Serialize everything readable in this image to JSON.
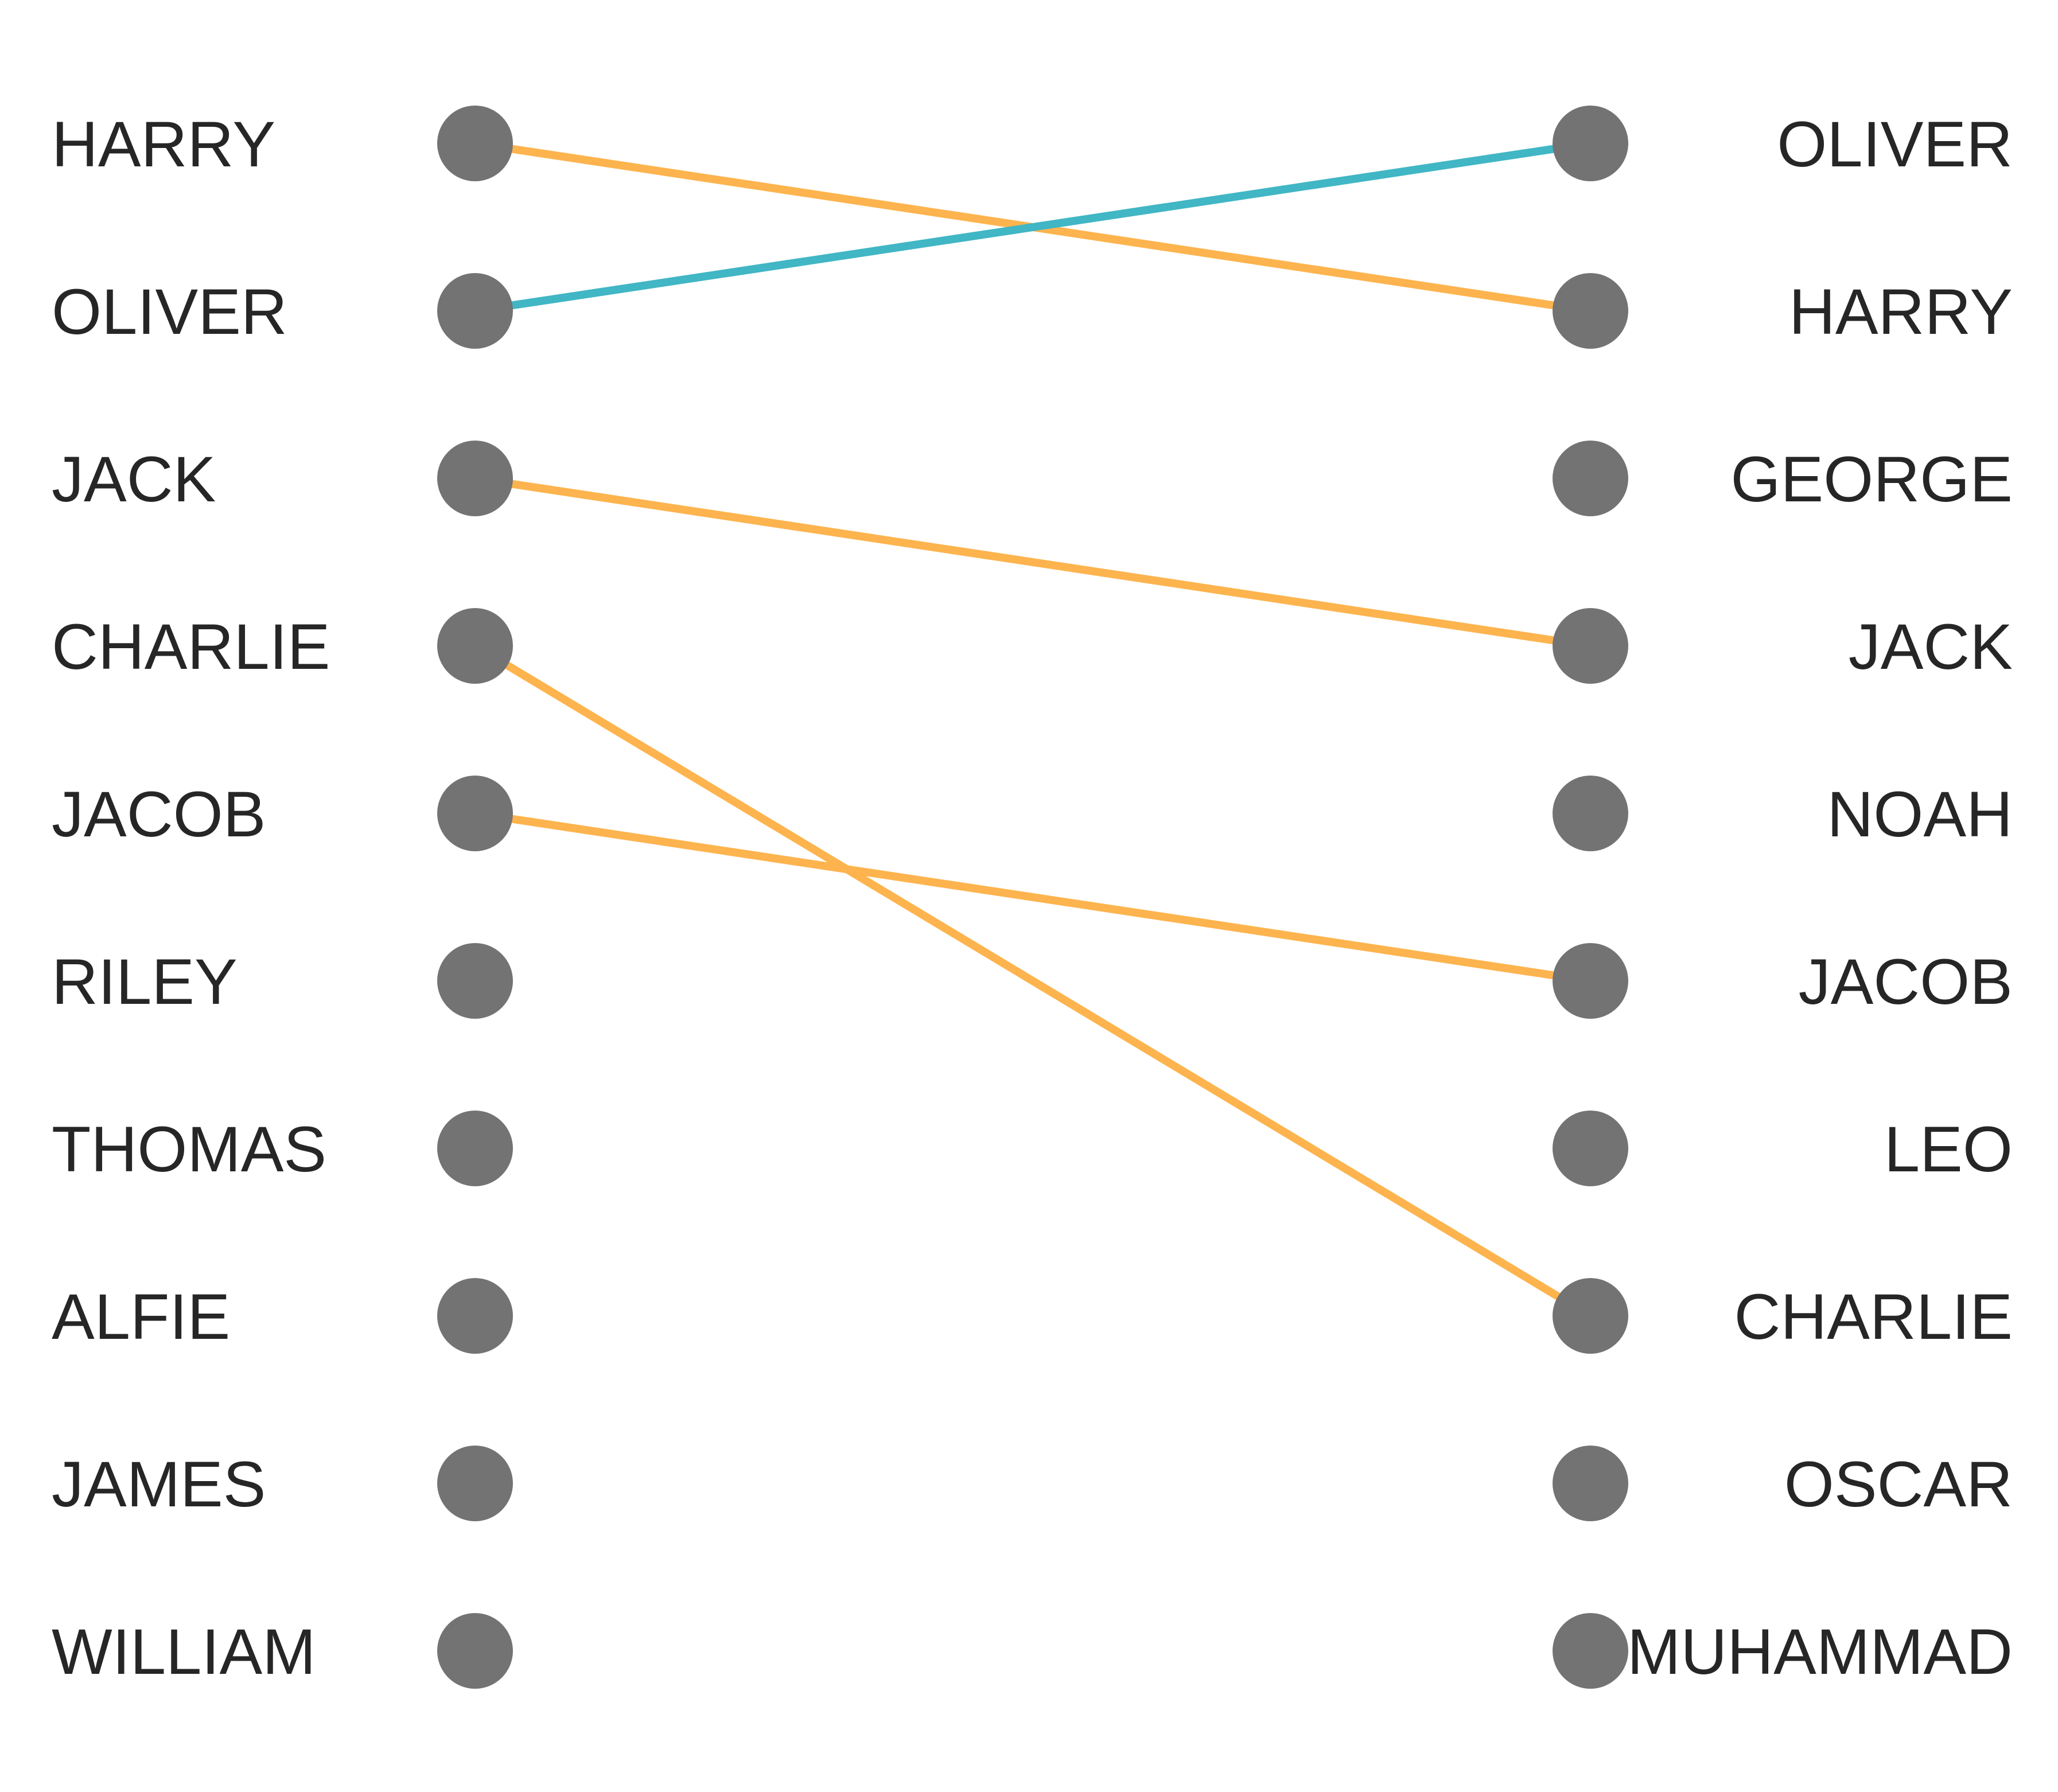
{
  "chart_data": {
    "type": "slope",
    "left_rank_labels": [
      "HARRY",
      "OLIVER",
      "JACK",
      "CHARLIE",
      "JACOB",
      "RILEY",
      "THOMAS",
      "ALFIE",
      "JAMES",
      "WILLIAM"
    ],
    "right_rank_labels": [
      "OLIVER",
      "HARRY",
      "GEORGE",
      "JACK",
      "NOAH",
      "JACOB",
      "LEO",
      "CHARLIE",
      "OSCAR",
      "MUHAMMAD"
    ],
    "connections": [
      {
        "name": "HARRY",
        "from_rank": 1,
        "to_rank": 2,
        "color": "#FDB44E"
      },
      {
        "name": "OLIVER",
        "from_rank": 2,
        "to_rank": 1,
        "color": "#41B6C4"
      },
      {
        "name": "JACK",
        "from_rank": 3,
        "to_rank": 4,
        "color": "#FDB44E"
      },
      {
        "name": "CHARLIE",
        "from_rank": 4,
        "to_rank": 8,
        "color": "#FDB44E"
      },
      {
        "name": "JACOB",
        "from_rank": 5,
        "to_rank": 6,
        "color": "#FDB44E"
      }
    ],
    "colors": {
      "dot": "#737373",
      "text": "#262626",
      "up": "#41B6C4",
      "down": "#FDB44E"
    },
    "grid": false,
    "axes": false
  }
}
